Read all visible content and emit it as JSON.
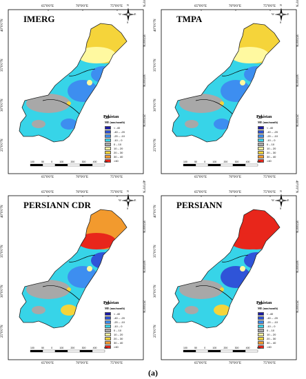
{
  "panels": [
    {
      "title": "IMERG",
      "scheme": "low"
    },
    {
      "title": "TMPA",
      "scheme": "low"
    },
    {
      "title": "PERSIANN CDR",
      "scheme": "high"
    },
    {
      "title": "PERSIANN",
      "scheme": "veryhigh"
    }
  ],
  "coords": {
    "lon": [
      "65°0'0\"E",
      "70°0'0\"E",
      "75°0'0\"E"
    ],
    "lat_left": [
      "40°0'0\"N",
      "35°0'0\"N",
      "30°0'0\"N",
      "25°0'0\"N"
    ],
    "lat_right": [
      "40°0'0\"N",
      "35°0'0\"N",
      "30°0'0\"N",
      "25°0'0\"N"
    ],
    "top_lon": [
      "65°0'0\"E",
      "70°0'0\"E",
      "75°0'0\"E"
    ]
  },
  "compass": {
    "n": "N",
    "s": "S",
    "e": "E",
    "w": "W"
  },
  "legend": {
    "country": "Pakistan",
    "title": "ME (mm/month)",
    "items": [
      {
        "label": "< -40",
        "color": "#1a1aa8"
      },
      {
        "label": "-40 – -20",
        "color": "#2f54d8"
      },
      {
        "label": "-20 – -10",
        "color": "#3d8ef0"
      },
      {
        "label": "-10 – 0",
        "color": "#37d4e8"
      },
      {
        "label": "0 – 10",
        "color": "#a8a8a8"
      },
      {
        "label": "10 – 20",
        "color": "#fff9a0"
      },
      {
        "label": "20 – 30",
        "color": "#f5d43a"
      },
      {
        "label": "30 – 40",
        "color": "#f29a2e"
      },
      {
        "label": ">40",
        "color": "#e8261b"
      }
    ]
  },
  "scale": {
    "labels": [
      "100",
      "50",
      "0",
      "100",
      "200",
      "300",
      "400"
    ],
    "unit": "Km"
  },
  "caption": "(a)"
}
